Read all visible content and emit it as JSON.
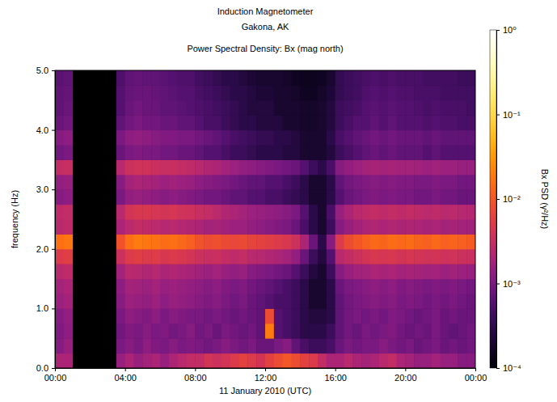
{
  "chart_data": {
    "type": "heatmap",
    "title": "Induction Magnetometer",
    "subtitle": "Gakona, AK",
    "plot_title": "Power Spectral Density: Bx (mag north)",
    "x_label": "11 January 2010 (UTC)",
    "y_label": "frequency (Hz)",
    "xlim": [
      0,
      24
    ],
    "xticks": [
      {
        "value": 0,
        "label": "00:00"
      },
      {
        "value": 4,
        "label": "04:00"
      },
      {
        "value": 8,
        "label": "08:00"
      },
      {
        "value": 12,
        "label": "12:00"
      },
      {
        "value": 16,
        "label": "16:00"
      },
      {
        "value": 20,
        "label": "20:00"
      },
      {
        "value": 24,
        "label": "00:00"
      }
    ],
    "ylim": [
      0,
      5
    ],
    "yticks": [
      {
        "value": 0,
        "label": "0.0"
      },
      {
        "value": 1,
        "label": "1.0"
      },
      {
        "value": 2,
        "label": "2.0"
      },
      {
        "value": 3,
        "label": "3.0"
      },
      {
        "value": 4,
        "label": "4.0"
      },
      {
        "value": 5,
        "label": "5.0"
      }
    ],
    "grid": false,
    "x_bins": [
      0,
      0.5,
      1,
      1.5,
      2,
      2.5,
      3,
      3.5,
      4,
      4.5,
      5,
      5.5,
      6,
      6.5,
      7,
      7.5,
      8,
      8.5,
      9,
      9.5,
      10,
      10.5,
      11,
      11.5,
      12,
      12.5,
      13,
      13.5,
      14,
      14.5,
      15,
      15.5,
      16,
      16.5,
      17,
      17.5,
      18,
      18.5,
      19,
      19.5,
      20,
      20.5,
      21,
      21.5,
      22,
      22.5,
      23,
      23.5,
      24
    ],
    "y_bins": [
      0,
      0.25,
      0.5,
      0.75,
      1,
      1.25,
      1.5,
      1.75,
      2,
      2.25,
      2.5,
      2.75,
      3,
      3.25,
      3.5,
      3.75,
      4,
      4.25,
      4.5,
      4.75,
      5
    ],
    "cells": [
      [
        0.002,
        0.002,
        null,
        null,
        null,
        null,
        null,
        0.0015,
        0.002,
        0.0015,
        0.0018,
        0.002,
        0.0015,
        0.002,
        0.0025,
        0.003,
        0.003,
        0.004,
        0.0035,
        0.004,
        0.005,
        0.006,
        0.005,
        0.004,
        0.006,
        0.008,
        0.01,
        0.008,
        0.006,
        0.005,
        0.003,
        0.002,
        0.002,
        0.0025,
        0.002,
        0.0018,
        0.002,
        0.0025,
        0.003,
        0.002,
        0.0018,
        0.0015,
        0.0015,
        0.0018,
        0.0015,
        0.0015,
        0.0012,
        0.0012
      ],
      [
        0.0012,
        0.0015,
        null,
        null,
        null,
        null,
        null,
        0.001,
        0.0012,
        0.001,
        0.0013,
        0.0011,
        0.001,
        0.0012,
        0.001,
        0.0011,
        0.001,
        0.0009,
        0.001,
        0.0012,
        0.001,
        0.0009,
        0.001,
        0.0008,
        0.0008,
        0.001,
        0.0012,
        0.0007,
        0.0005,
        0.0004,
        0.0004,
        0.0005,
        0.0008,
        0.001,
        0.0009,
        0.001,
        0.001,
        0.0012,
        0.001,
        0.0009,
        0.001,
        0.0008,
        0.0009,
        0.001,
        0.0008,
        0.0009,
        0.0008,
        0.0009
      ],
      [
        0.0011,
        0.0013,
        null,
        null,
        null,
        null,
        null,
        0.0009,
        0.0011,
        0.001,
        0.0012,
        0.001,
        0.0011,
        0.0009,
        0.001,
        0.0012,
        0.0009,
        0.001,
        0.0008,
        0.001,
        0.0009,
        0.0008,
        0.0009,
        0.0007,
        0.02,
        0.0006,
        0.0005,
        0.0004,
        0.0003,
        0.0003,
        0.0003,
        0.0004,
        0.0007,
        0.0009,
        0.0008,
        0.001,
        0.0009,
        0.001,
        0.0011,
        0.0009,
        0.0008,
        0.0009,
        0.0008,
        0.001,
        0.0008,
        0.0007,
        0.0008,
        0.0009
      ],
      [
        0.0012,
        0.0014,
        null,
        null,
        null,
        null,
        null,
        0.001,
        0.0013,
        0.0012,
        0.0011,
        0.0013,
        0.001,
        0.0012,
        0.0011,
        0.001,
        0.001,
        0.0009,
        0.001,
        0.0009,
        0.0008,
        0.0009,
        0.0008,
        0.0007,
        0.008,
        0.0006,
        0.0005,
        0.0004,
        0.0003,
        0.00025,
        0.00025,
        0.0003,
        0.0007,
        0.0009,
        0.001,
        0.0009,
        0.001,
        0.0009,
        0.0011,
        0.001,
        0.0009,
        0.0008,
        0.0009,
        0.001,
        0.0008,
        0.0009,
        0.0008,
        0.0008
      ],
      [
        0.0016,
        0.0018,
        null,
        null,
        null,
        null,
        null,
        0.0012,
        0.0016,
        0.0015,
        0.0014,
        0.0016,
        0.0013,
        0.0015,
        0.0014,
        0.0013,
        0.0012,
        0.0011,
        0.0012,
        0.001,
        0.0009,
        0.001,
        0.0008,
        0.0007,
        0.0006,
        0.0005,
        0.0005,
        0.0004,
        0.0003,
        0.0002,
        0.0002,
        0.0003,
        0.0007,
        0.0009,
        0.001,
        0.0011,
        0.0012,
        0.0011,
        0.0012,
        0.001,
        0.0011,
        0.001,
        0.0009,
        0.001,
        0.0009,
        0.001,
        0.0009,
        0.0008
      ],
      [
        0.0018,
        0.002,
        null,
        null,
        null,
        null,
        null,
        0.0013,
        0.0018,
        0.0017,
        0.0016,
        0.0018,
        0.0015,
        0.0016,
        0.0015,
        0.0014,
        0.0013,
        0.0012,
        0.0013,
        0.0011,
        0.001,
        0.0011,
        0.0009,
        0.0008,
        0.0007,
        0.0006,
        0.0005,
        0.0004,
        0.0003,
        0.0002,
        0.0002,
        0.0003,
        0.0008,
        0.001,
        0.0011,
        0.0012,
        0.0013,
        0.0012,
        0.0013,
        0.0011,
        0.0012,
        0.0011,
        0.001,
        0.0011,
        0.001,
        0.0011,
        0.001,
        0.0009
      ],
      [
        0.0025,
        0.0028,
        null,
        null,
        null,
        null,
        null,
        0.0018,
        0.0025,
        0.0024,
        0.0022,
        0.0024,
        0.002,
        0.0022,
        0.002,
        0.0019,
        0.0017,
        0.0016,
        0.0018,
        0.0015,
        0.0014,
        0.0015,
        0.0012,
        0.0011,
        0.001,
        0.0009,
        0.0008,
        0.0006,
        0.0004,
        0.00025,
        0.0002,
        0.0004,
        0.0012,
        0.0015,
        0.0017,
        0.0018,
        0.002,
        0.0019,
        0.002,
        0.0018,
        0.0019,
        0.0018,
        0.0017,
        0.0018,
        0.0016,
        0.0017,
        0.0016,
        0.0015
      ],
      [
        0.005,
        0.0055,
        null,
        null,
        null,
        null,
        null,
        0.0035,
        0.005,
        0.0055,
        0.005,
        0.0052,
        0.0045,
        0.0048,
        0.0045,
        0.004,
        0.0035,
        0.0032,
        0.0034,
        0.003,
        0.0028,
        0.003,
        0.0025,
        0.0024,
        0.0022,
        0.002,
        0.0018,
        0.0014,
        0.0008,
        0.0004,
        0.00025,
        0.0006,
        0.0025,
        0.003,
        0.0035,
        0.004,
        0.0045,
        0.0042,
        0.0045,
        0.004,
        0.0043,
        0.004,
        0.0038,
        0.004,
        0.0036,
        0.0038,
        0.0035,
        0.0034
      ],
      [
        0.016,
        0.018,
        null,
        null,
        null,
        null,
        null,
        0.009,
        0.016,
        0.02,
        0.018,
        0.017,
        0.015,
        0.016,
        0.014,
        0.012,
        0.009,
        0.008,
        0.0085,
        0.0075,
        0.007,
        0.0075,
        0.0065,
        0.006,
        0.0055,
        0.005,
        0.0045,
        0.0035,
        0.002,
        0.0008,
        0.0003,
        0.0012,
        0.005,
        0.008,
        0.01,
        0.012,
        0.014,
        0.013,
        0.015,
        0.014,
        0.015,
        0.013,
        0.012,
        0.014,
        0.012,
        0.013,
        0.012,
        0.011
      ],
      [
        0.0025,
        0.0028,
        null,
        null,
        null,
        null,
        null,
        0.002,
        0.0026,
        0.003,
        0.0028,
        0.0026,
        0.0024,
        0.0025,
        0.0023,
        0.0022,
        0.002,
        0.0018,
        0.0019,
        0.0017,
        0.0016,
        0.0016,
        0.0014,
        0.0013,
        0.0012,
        0.0011,
        0.001,
        0.0008,
        0.0005,
        0.0003,
        0.0002,
        0.0004,
        0.0012,
        0.0015,
        0.0018,
        0.002,
        0.0022,
        0.002,
        0.0022,
        0.002,
        0.0021,
        0.002,
        0.0019,
        0.002,
        0.0018,
        0.0019,
        0.0018,
        0.0017
      ],
      [
        0.0028,
        0.003,
        null,
        null,
        null,
        null,
        null,
        0.0025,
        0.004,
        0.0045,
        0.0045,
        0.0042,
        0.004,
        0.0042,
        0.0038,
        0.0036,
        0.0032,
        0.003,
        0.0026,
        0.0022,
        0.002,
        0.0018,
        0.0016,
        0.0015,
        0.0014,
        0.0013,
        0.0012,
        0.001,
        0.0006,
        0.0003,
        0.0002,
        0.0005,
        0.0015,
        0.002,
        0.0025,
        0.0028,
        0.003,
        0.0028,
        0.003,
        0.0028,
        0.003,
        0.0028,
        0.0026,
        0.0028,
        0.0025,
        0.0026,
        0.0024,
        0.0023
      ],
      [
        0.0012,
        0.0013,
        null,
        null,
        null,
        null,
        null,
        0.001,
        0.0014,
        0.0015,
        0.0014,
        0.0013,
        0.0012,
        0.0013,
        0.0012,
        0.0011,
        0.001,
        0.0009,
        0.0009,
        0.0008,
        0.0007,
        0.0007,
        0.0006,
        0.0006,
        0.0005,
        0.0005,
        0.0004,
        0.00035,
        0.0003,
        0.0002,
        0.0002,
        0.0003,
        0.0006,
        0.0008,
        0.0009,
        0.001,
        0.0011,
        0.001,
        0.0011,
        0.001,
        0.001,
        0.0009,
        0.0009,
        0.001,
        0.0009,
        0.0009,
        0.0008,
        0.0008
      ],
      [
        0.0014,
        0.0015,
        null,
        null,
        null,
        null,
        null,
        0.0012,
        0.0018,
        0.002,
        0.0019,
        0.0018,
        0.0016,
        0.0017,
        0.0016,
        0.0015,
        0.0013,
        0.0012,
        0.0011,
        0.001,
        0.0009,
        0.0008,
        0.0007,
        0.0007,
        0.0006,
        0.0006,
        0.0005,
        0.0004,
        0.0003,
        0.0002,
        0.0002,
        0.0003,
        0.0007,
        0.0009,
        0.001,
        0.0011,
        0.0012,
        0.0011,
        0.0012,
        0.0011,
        0.0011,
        0.001,
        0.001,
        0.0011,
        0.001,
        0.001,
        0.0009,
        0.0009
      ],
      [
        0.003,
        0.0032,
        null,
        null,
        null,
        null,
        null,
        0.0025,
        0.0035,
        0.0038,
        0.0036,
        0.0034,
        0.0032,
        0.0033,
        0.003,
        0.0028,
        0.0025,
        0.0022,
        0.002,
        0.0018,
        0.0016,
        0.0014,
        0.0013,
        0.0012,
        0.0011,
        0.001,
        0.0009,
        0.0008,
        0.0006,
        0.0004,
        0.0003,
        0.0005,
        0.0012,
        0.0014,
        0.0016,
        0.0018,
        0.0019,
        0.0018,
        0.0019,
        0.0018,
        0.0018,
        0.0017,
        0.0016,
        0.0017,
        0.0016,
        0.0016,
        0.0015,
        0.0015
      ],
      [
        0.0009,
        0.001,
        null,
        null,
        null,
        null,
        null,
        0.0008,
        0.001,
        0.0011,
        0.001,
        0.001,
        0.0009,
        0.0009,
        0.0008,
        0.0008,
        0.0007,
        0.0006,
        0.0006,
        0.0005,
        0.0004,
        0.0004,
        0.00035,
        0.0003,
        0.0003,
        0.0003,
        0.00025,
        0.00025,
        0.0002,
        0.0002,
        0.0002,
        0.00025,
        0.0004,
        0.0005,
        0.0006,
        0.0007,
        0.0008,
        0.0007,
        0.0008,
        0.0007,
        0.0007,
        0.0007,
        0.0006,
        0.0007,
        0.0006,
        0.0006,
        0.0006,
        0.0006
      ],
      [
        0.0012,
        0.0013,
        null,
        null,
        null,
        null,
        null,
        0.001,
        0.0013,
        0.0014,
        0.0013,
        0.0012,
        0.0011,
        0.0011,
        0.001,
        0.001,
        0.0009,
        0.0008,
        0.0007,
        0.0006,
        0.0005,
        0.00045,
        0.0004,
        0.00035,
        0.00035,
        0.0003,
        0.0003,
        0.00025,
        0.0002,
        0.0002,
        0.0002,
        0.0003,
        0.0005,
        0.0006,
        0.0007,
        0.0008,
        0.0009,
        0.0008,
        0.0009,
        0.0008,
        0.0008,
        0.0008,
        0.0007,
        0.0008,
        0.0007,
        0.0007,
        0.0007,
        0.0007
      ],
      [
        0.0008,
        0.0009,
        null,
        null,
        null,
        null,
        null,
        0.0007,
        0.0009,
        0.001,
        0.0009,
        0.0009,
        0.0008,
        0.0008,
        0.0007,
        0.0007,
        0.0006,
        0.0005,
        0.0005,
        0.0004,
        0.00035,
        0.0003,
        0.0003,
        0.00025,
        0.00025,
        0.00025,
        0.0002,
        0.0002,
        0.00018,
        0.00018,
        0.0002,
        0.00025,
        0.0004,
        0.0005,
        0.0006,
        0.0006,
        0.0007,
        0.0006,
        0.0007,
        0.0006,
        0.0006,
        0.0006,
        0.00055,
        0.0006,
        0.00055,
        0.00055,
        0.0005,
        0.0005
      ],
      [
        0.0007,
        0.0008,
        null,
        null,
        null,
        null,
        null,
        0.0006,
        0.0008,
        0.0009,
        0.0008,
        0.0008,
        0.0007,
        0.0007,
        0.00065,
        0.0006,
        0.00055,
        0.0005,
        0.00045,
        0.0004,
        0.00035,
        0.0003,
        0.00025,
        0.00025,
        0.00025,
        0.0002,
        0.0002,
        0.0002,
        0.00018,
        0.00018,
        0.0002,
        0.00025,
        0.0004,
        0.00045,
        0.0005,
        0.0006,
        0.00065,
        0.0006,
        0.00065,
        0.0006,
        0.0006,
        0.00055,
        0.0005,
        0.00055,
        0.0005,
        0.0005,
        0.0005,
        0.00045
      ],
      [
        0.0007,
        0.00075,
        null,
        null,
        null,
        null,
        null,
        0.0006,
        0.00075,
        0.0008,
        0.0008,
        0.00075,
        0.0007,
        0.00065,
        0.0006,
        0.0006,
        0.0005,
        0.00045,
        0.0004,
        0.00035,
        0.0003,
        0.0003,
        0.00025,
        0.00022,
        0.00022,
        0.0002,
        0.0002,
        0.00018,
        0.00016,
        0.00016,
        0.00018,
        0.00022,
        0.00035,
        0.0004,
        0.00045,
        0.00055,
        0.0006,
        0.00055,
        0.0006,
        0.00055,
        0.00055,
        0.0005,
        0.0005,
        0.0005,
        0.00045,
        0.00045,
        0.00045,
        0.00045
      ],
      [
        0.00065,
        0.0007,
        null,
        null,
        null,
        null,
        null,
        0.00055,
        0.0007,
        0.00075,
        0.0007,
        0.0007,
        0.00065,
        0.0006,
        0.00055,
        0.00055,
        0.00045,
        0.0004,
        0.00035,
        0.0003,
        0.0003,
        0.00025,
        0.00022,
        0.0002,
        0.0002,
        0.0002,
        0.00018,
        0.00016,
        0.00015,
        0.00015,
        0.00016,
        0.0002,
        0.00035,
        0.0004,
        0.00045,
        0.0005,
        0.00055,
        0.0005,
        0.00055,
        0.0005,
        0.0005,
        0.0005,
        0.00045,
        0.00045,
        0.00045,
        0.00045,
        0.0004,
        0.0004
      ]
    ],
    "colorbar": {
      "label": "Bx PSD (γ²/Hz)",
      "log": true,
      "range": [
        0.0001,
        1
      ],
      "ticks": [
        {
          "value": 0.0001,
          "label": "10⁻⁴"
        },
        {
          "value": 0.001,
          "label": "10⁻³"
        },
        {
          "value": 0.01,
          "label": "10⁻²"
        },
        {
          "value": 0.1,
          "label": "10⁻¹"
        },
        {
          "value": 1,
          "label": "10⁰"
        }
      ]
    }
  }
}
